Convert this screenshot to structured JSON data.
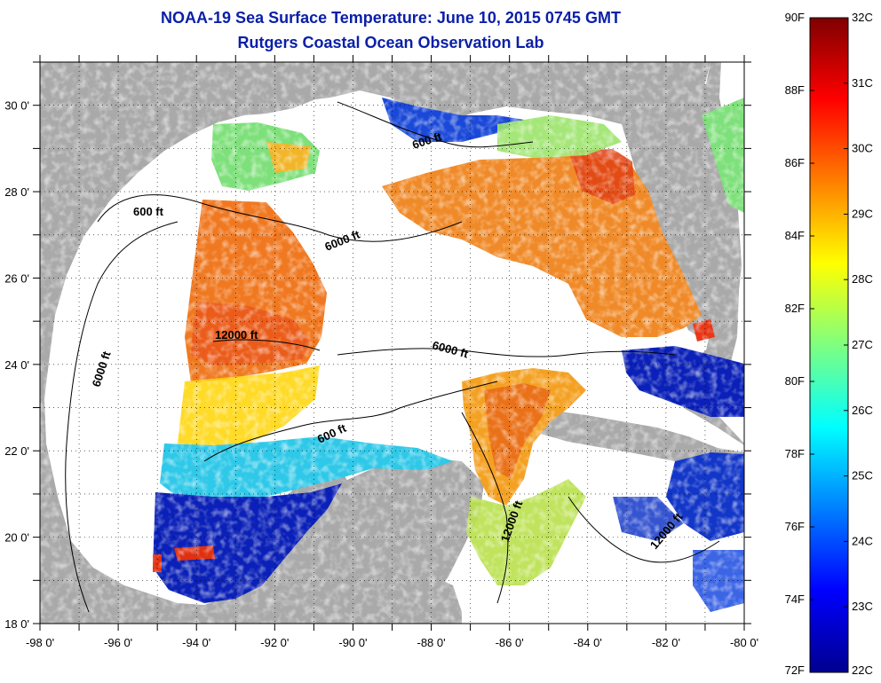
{
  "title": {
    "line1": "NOAA-19 Sea Surface Temperature:  June 10, 2015 0745 GMT",
    "line2": "Rutgers Coastal Ocean Observation Lab"
  },
  "map": {
    "lon_range": [
      -98,
      -80
    ],
    "lat_range": [
      18,
      31
    ],
    "x_ticks": [
      "-98 0'",
      "-96 0'",
      "-94 0'",
      "-92 0'",
      "-90 0'",
      "-88 0'",
      "-86 0'",
      "-84 0'",
      "-82 0'",
      "-80 0'"
    ],
    "y_ticks": [
      "18 0'",
      "20 0'",
      "22 0'",
      "24 0'",
      "26 0'",
      "28 0'",
      "30 0'"
    ],
    "grid": "dotted",
    "colors": {
      "land": "#a9a9a9",
      "no_data": "#ffffff",
      "contour": "#000000"
    },
    "contour_labels": [
      "600 ft",
      "6000 ft",
      "12000 ft",
      "6000 ft",
      "6000 ft",
      "600 ft",
      "12000 ft",
      "12000 ft",
      "600 ft"
    ]
  },
  "colorbar": {
    "fahrenheit_labels": [
      "90F",
      "88F",
      "86F",
      "84F",
      "82F",
      "80F",
      "78F",
      "76F",
      "74F",
      "72F"
    ],
    "celsius_labels": [
      "32C",
      "31C",
      "30C",
      "29C",
      "28C",
      "27C",
      "26C",
      "25C",
      "24C",
      "23C",
      "22C"
    ],
    "range_c": [
      22,
      32
    ],
    "range_f": [
      72,
      90
    ],
    "gradient_colors": [
      "#7f0000",
      "#ff0000",
      "#ff7f00",
      "#ffff00",
      "#7fff7f",
      "#00ffff",
      "#007fff",
      "#0000ff",
      "#00008f"
    ]
  }
}
